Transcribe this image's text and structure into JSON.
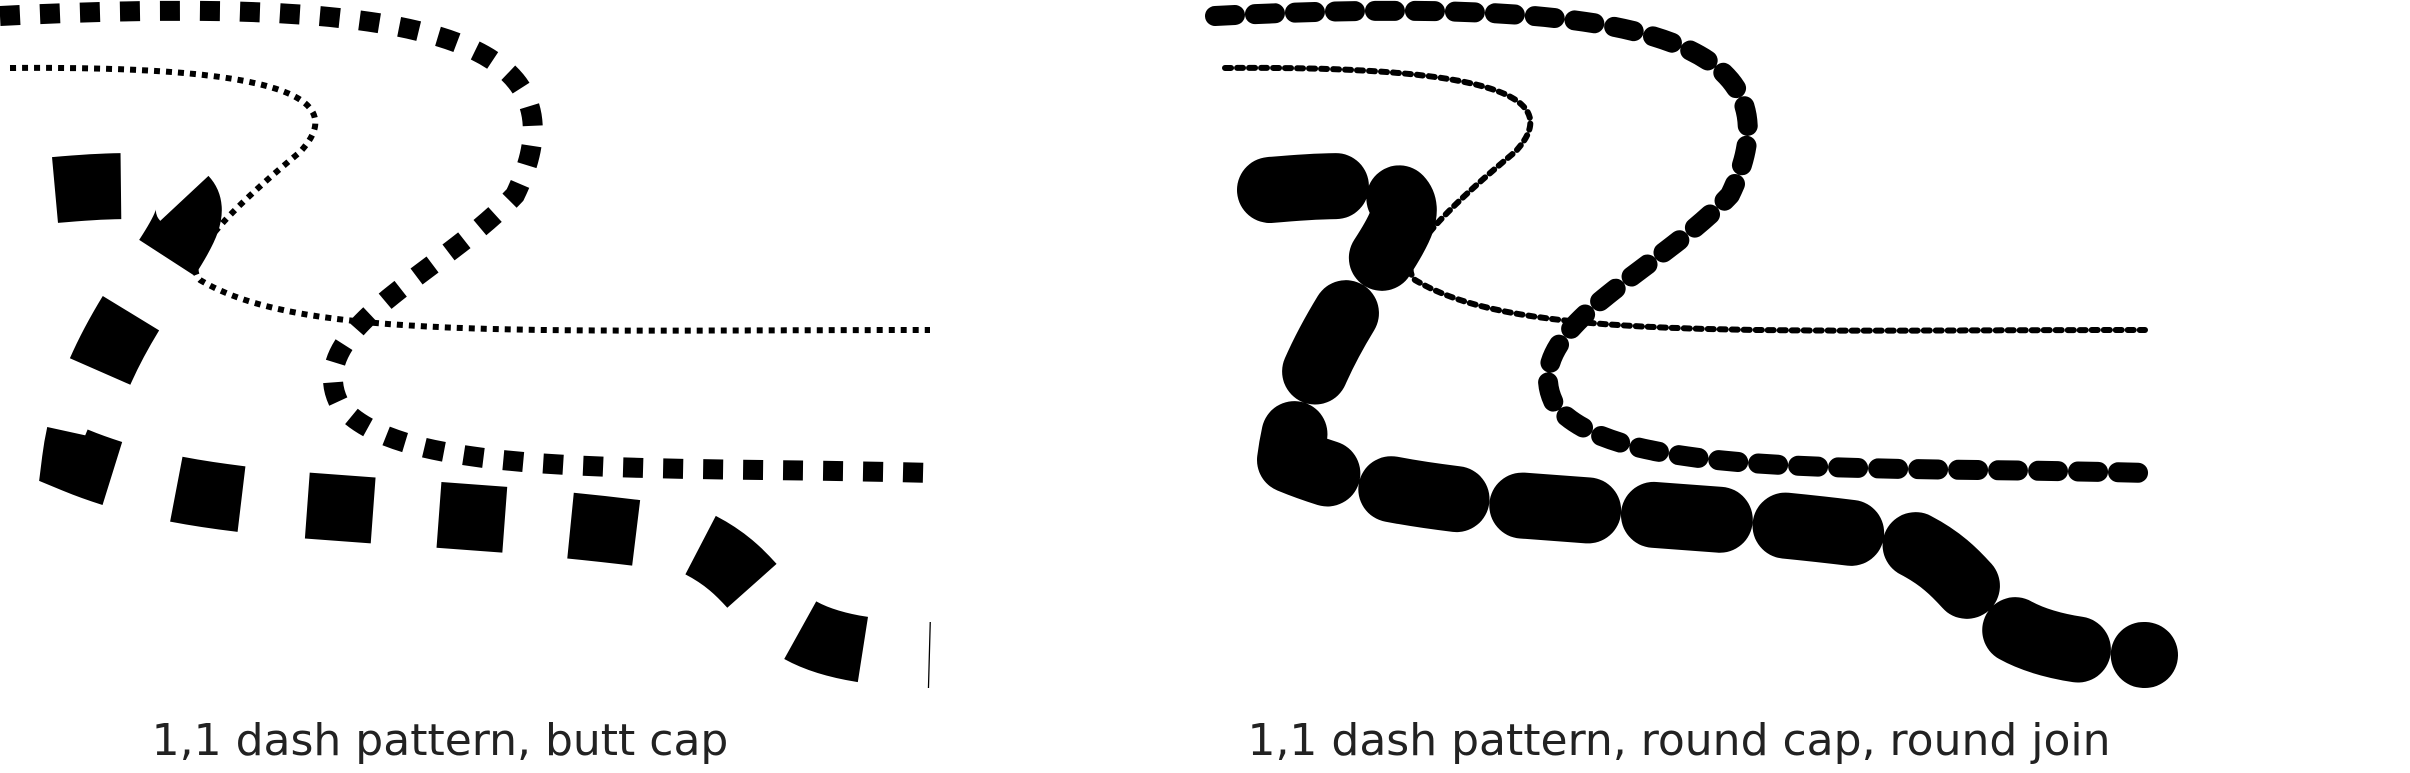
{
  "panels": [
    {
      "id": "butt",
      "caption": "1,1 dash pattern,  butt cap",
      "line_cap": "butt",
      "line_join": "miter",
      "dash_pattern": [
        1,
        1
      ]
    },
    {
      "id": "round",
      "caption": "1,1 dash pattern,  round cap,  round join",
      "line_cap": "round",
      "line_join": "round",
      "dash_pattern": [
        1,
        1
      ]
    }
  ],
  "colors": {
    "stroke": "#000000",
    "text": "#222222",
    "background": "#ffffff"
  }
}
